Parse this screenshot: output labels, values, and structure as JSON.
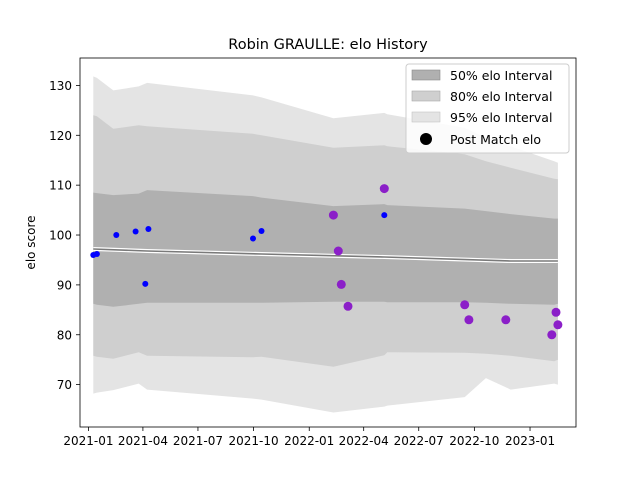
{
  "chart_data": {
    "type": "scatter",
    "title": "Robin GRAULLE: elo History",
    "xlabel": "",
    "ylabel": "elo score",
    "xlim": [
      "2020-12-18",
      "2023-03-18"
    ],
    "ylim": [
      61.5,
      135.5
    ],
    "x_ticks": [
      {
        "date": "2021-01-01",
        "label": "2021-01"
      },
      {
        "date": "2021-04-01",
        "label": "2021-04"
      },
      {
        "date": "2021-07-01",
        "label": "2021-07"
      },
      {
        "date": "2021-10-01",
        "label": "2021-10"
      },
      {
        "date": "2022-01-01",
        "label": "2022-01"
      },
      {
        "date": "2022-04-01",
        "label": "2022-04"
      },
      {
        "date": "2022-07-01",
        "label": "2022-07"
      },
      {
        "date": "2022-10-01",
        "label": "2022-10"
      },
      {
        "date": "2023-01-01",
        "label": "2023-01"
      }
    ],
    "y_ticks": [
      70,
      80,
      90,
      100,
      110,
      120,
      130
    ],
    "grid": false,
    "legend_position": "top-right",
    "legend": [
      {
        "label": "50% elo Interval",
        "kind": "patch",
        "color": "#b0b0b0"
      },
      {
        "label": "80% elo Interval",
        "kind": "patch",
        "color": "#cfcfcf"
      },
      {
        "label": "95% elo Interval",
        "kind": "patch",
        "color": "#e4e4e4"
      },
      {
        "label": "Post Match elo",
        "kind": "marker",
        "color": "#000000"
      }
    ],
    "bands": [
      {
        "name": "95% elo Interval",
        "color": "#e4e4e4",
        "x": [
          "2021-01-09",
          "2021-01-15",
          "2021-02-11",
          "2021-03-25",
          "2021-04-08",
          "2021-09-30",
          "2021-10-14",
          "2022-02-10",
          "2022-05-05",
          "2022-05-10",
          "2022-09-15",
          "2022-10-20",
          "2022-11-30",
          "2023-02-10",
          "2023-02-16"
        ],
        "upper": [
          131.8,
          131.5,
          129.0,
          129.8,
          130.5,
          128.0,
          127.6,
          123.4,
          124.5,
          124.2,
          121.5,
          119.5,
          117.8,
          114.8,
          114.5
        ],
        "lower": [
          68.2,
          68.4,
          68.9,
          70.2,
          69.0,
          67.2,
          67.0,
          64.4,
          65.6,
          65.8,
          67.5,
          71.3,
          69.0,
          70.2,
          70.0
        ]
      },
      {
        "name": "80% elo Interval",
        "color": "#cfcfcf",
        "x": [
          "2021-01-09",
          "2021-01-15",
          "2021-02-11",
          "2021-03-25",
          "2021-04-08",
          "2021-09-30",
          "2021-10-14",
          "2022-02-10",
          "2022-05-05",
          "2022-05-10",
          "2022-09-15",
          "2022-10-20",
          "2022-11-30",
          "2023-02-10",
          "2023-02-16"
        ],
        "upper": [
          124.0,
          123.8,
          121.3,
          122.0,
          121.8,
          120.3,
          120.0,
          117.5,
          118.0,
          117.8,
          116.2,
          114.8,
          113.5,
          111.3,
          111.2
        ],
        "lower": [
          75.8,
          75.6,
          75.2,
          76.5,
          75.8,
          75.5,
          75.6,
          73.6,
          75.9,
          76.5,
          76.4,
          76.2,
          75.8,
          74.7,
          75.0
        ]
      },
      {
        "name": "50% elo Interval",
        "color": "#b0b0b0",
        "x": [
          "2021-01-09",
          "2021-01-15",
          "2021-02-11",
          "2021-03-25",
          "2021-04-08",
          "2021-09-30",
          "2021-10-14",
          "2022-02-10",
          "2022-05-05",
          "2022-05-10",
          "2022-09-15",
          "2022-10-20",
          "2022-11-30",
          "2023-02-10",
          "2023-02-16"
        ],
        "upper": [
          108.5,
          108.4,
          108.0,
          108.3,
          109.0,
          107.8,
          107.5,
          105.8,
          106.2,
          106.0,
          105.3,
          104.8,
          104.2,
          103.3,
          103.3
        ],
        "lower": [
          86.2,
          86.0,
          85.6,
          86.2,
          86.4,
          86.4,
          86.4,
          86.6,
          86.6,
          86.5,
          86.5,
          86.4,
          86.2,
          86.0,
          86.2
        ]
      }
    ],
    "mean_line": {
      "color": "#7a7a7a",
      "x": [
        "2021-01-09",
        "2021-04-08",
        "2021-10-14",
        "2022-05-05",
        "2022-11-30",
        "2023-02-16"
      ],
      "y": [
        97.2,
        96.8,
        96.2,
        95.6,
        94.8,
        94.8
      ]
    },
    "series": [
      {
        "color": "#0000ff",
        "x": [
          "2021-01-09",
          "2021-01-15",
          "2021-02-16",
          "2021-03-20",
          "2021-04-05",
          "2021-04-10",
          "2021-09-30",
          "2021-10-14",
          "2022-05-05"
        ],
        "y": [
          96.0,
          96.2,
          100.0,
          100.7,
          90.2,
          101.2,
          99.3,
          100.8,
          104.0
        ]
      },
      {
        "color": "#8b1fc8",
        "x": [
          "2022-02-10",
          "2022-02-18",
          "2022-02-23",
          "2022-03-06",
          "2022-05-05",
          "2022-09-15",
          "2022-09-22",
          "2022-11-22",
          "2023-02-06",
          "2023-02-13",
          "2023-02-16"
        ],
        "y": [
          104.0,
          96.8,
          90.1,
          85.7,
          109.3,
          86.0,
          83.0,
          83.0,
          80.0,
          84.5,
          82.0
        ]
      }
    ]
  }
}
